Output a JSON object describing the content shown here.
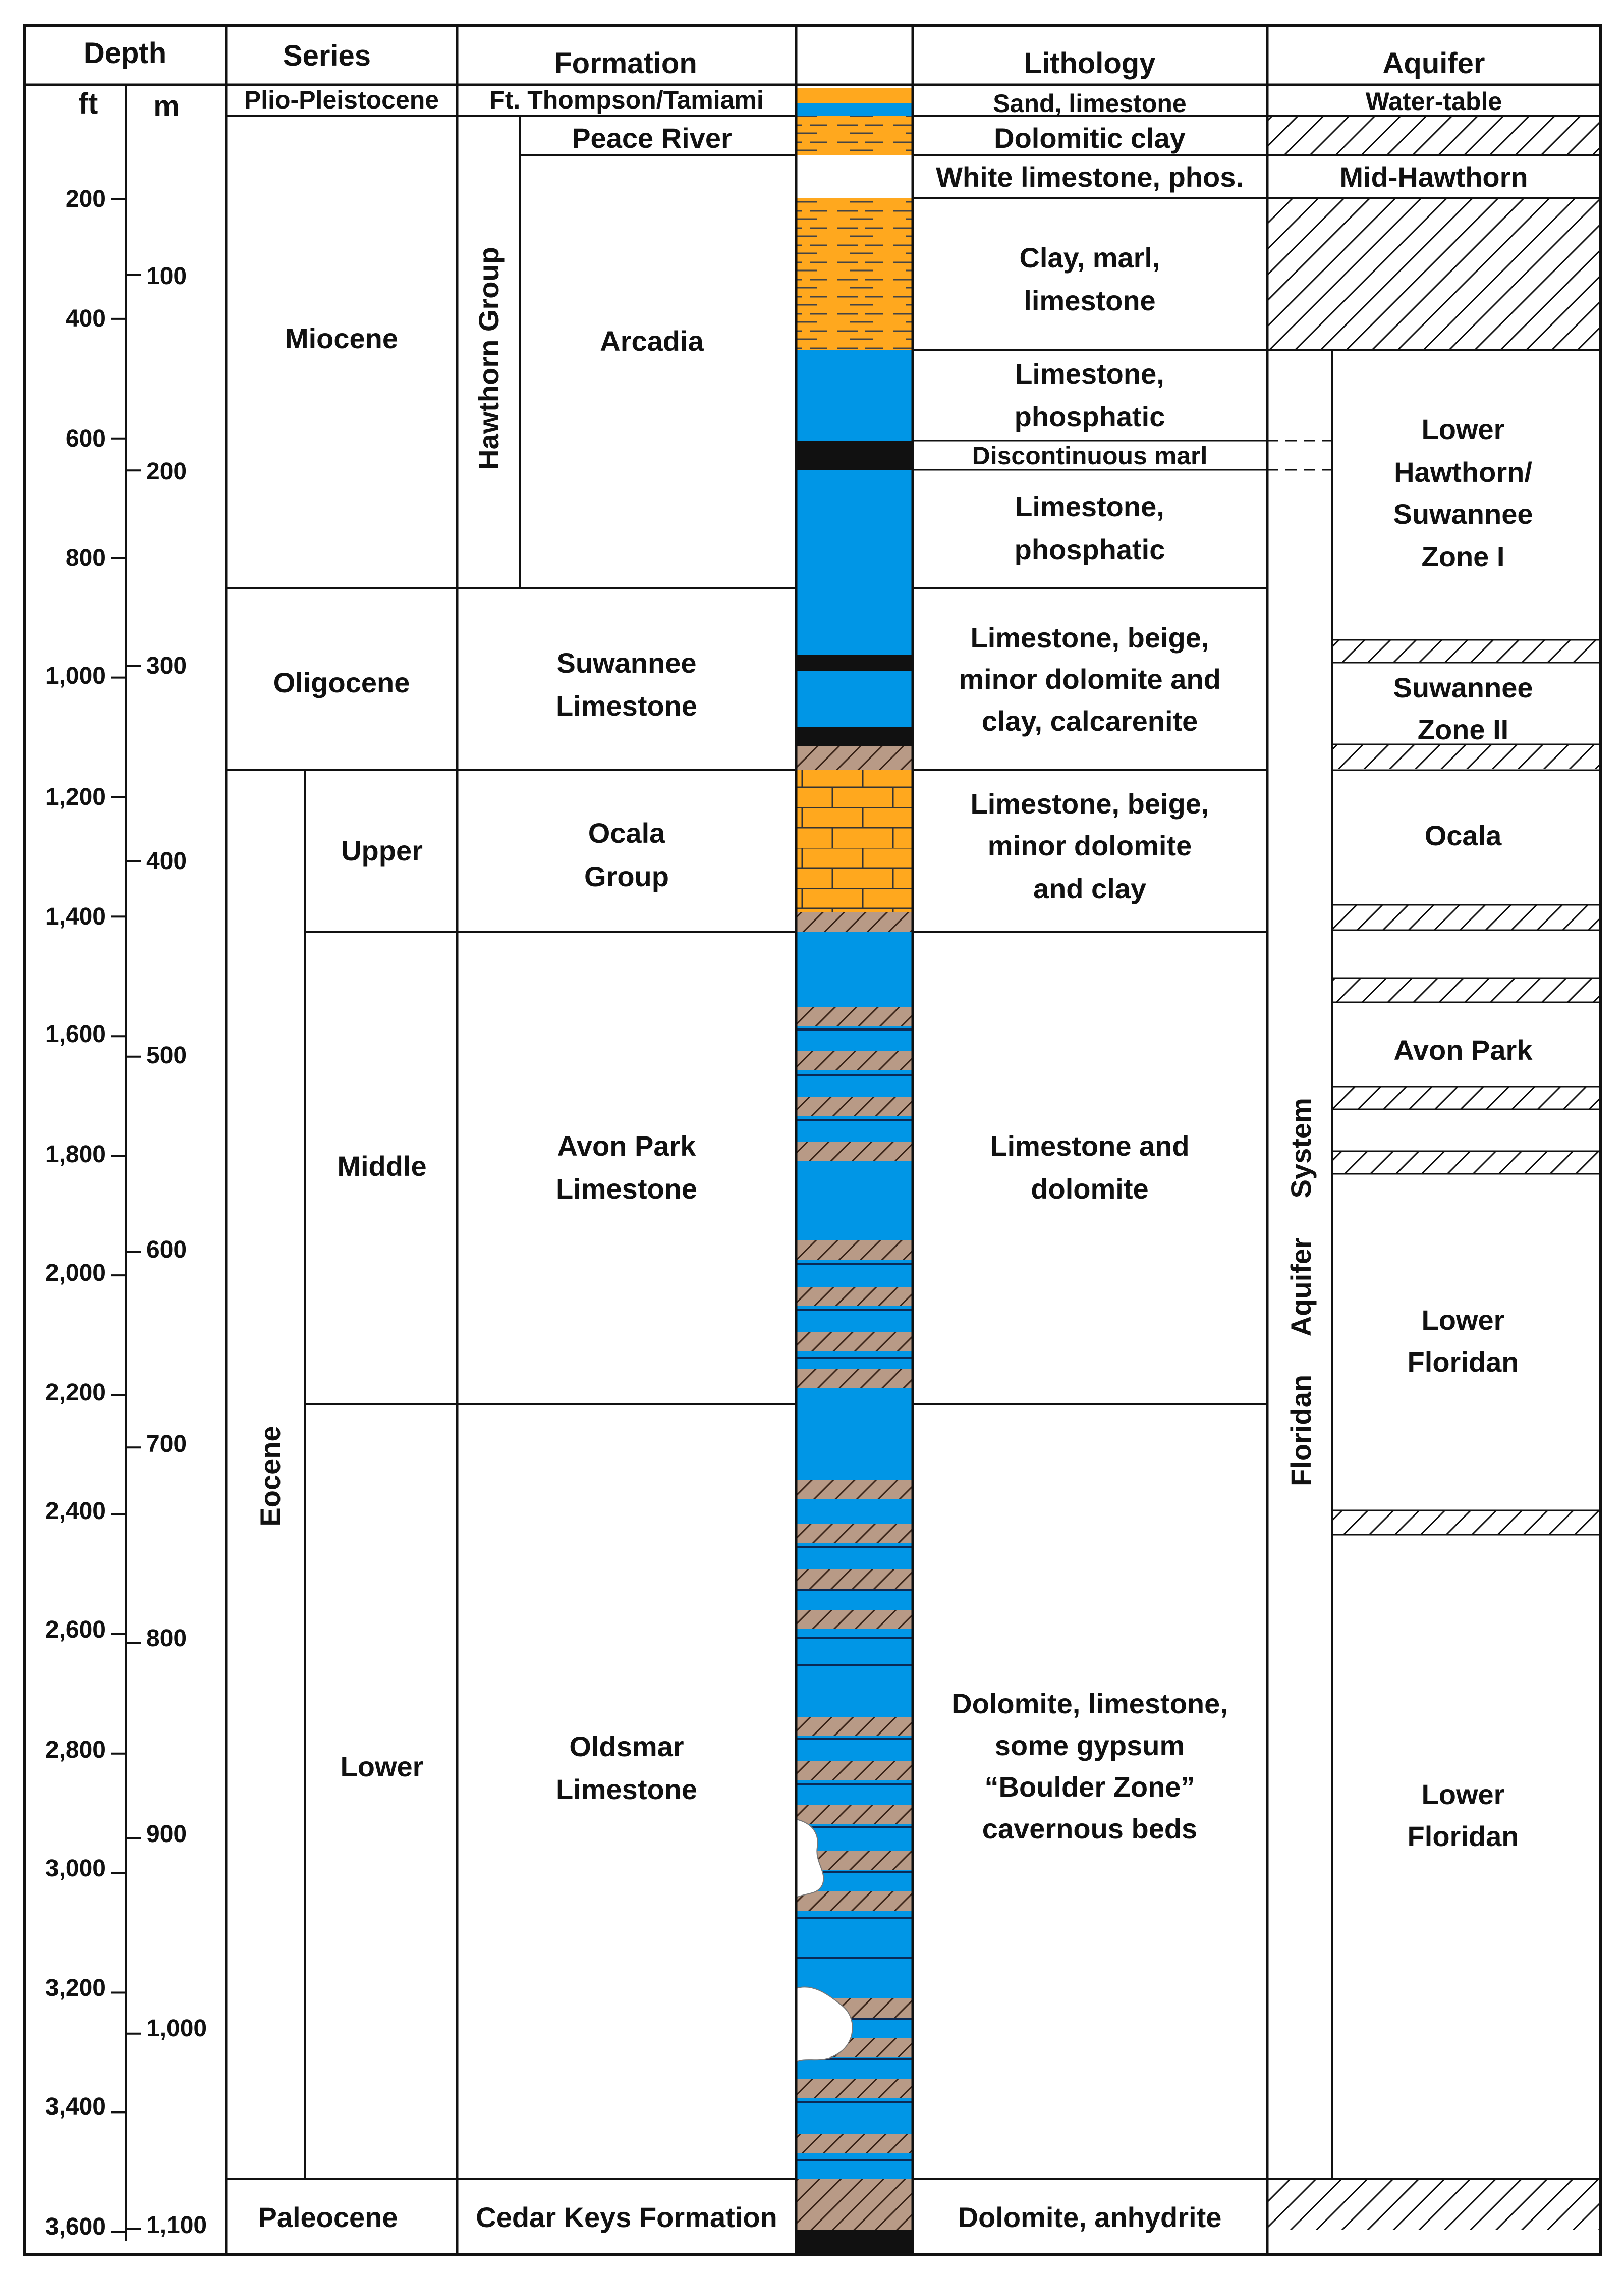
{
  "headers": {
    "depth": "Depth",
    "ft": "ft",
    "m": "m",
    "series": "Series",
    "formation": "Formation",
    "lithology": "Lithology",
    "aquifer": "Aquifer"
  },
  "depth_ft_ticks": [
    "200",
    "400",
    "600",
    "800",
    "1,000",
    "1,200",
    "1,400",
    "1,600",
    "1,800",
    "2,000",
    "2,200",
    "2,400",
    "2,600",
    "2,800",
    "3,000",
    "3,200",
    "3,400",
    "3,600"
  ],
  "depth_m_ticks": [
    "100",
    "200",
    "300",
    "400",
    "500",
    "600",
    "700",
    "800",
    "900",
    "1,000",
    "1,100"
  ],
  "series": {
    "plio": "Plio-Pleistocene",
    "miocene": "Miocene",
    "oligocene": "Oligocene",
    "eocene": "Eocene",
    "upper": "Upper",
    "middle": "Middle",
    "lower": "Lower",
    "paleocene": "Paleocene"
  },
  "formation": {
    "thompson": "Ft. Thompson/Tamiami",
    "peace_river": "Peace River",
    "hawthorn_group": "Hawthorn Group",
    "arcadia": "Arcadia",
    "suwannee_1": "Suwannee",
    "suwannee_2": "Limestone",
    "ocala_1": "Ocala",
    "ocala_2": "Group",
    "avon_1": "Avon Park",
    "avon_2": "Limestone",
    "oldsmar_1": "Oldsmar",
    "oldsmar_2": "Limestone",
    "cedar_keys": "Cedar Keys Formation"
  },
  "lithology": {
    "sand": "Sand, limestone",
    "dolomitic_clay": "Dolomitic clay",
    "white_limestone": "White limestone, phos.",
    "clay_1": "Clay, marl,",
    "clay_2": "limestone",
    "lp1_1": "Limestone,",
    "lp1_2": "phosphatic",
    "disc_marl": "Discontinuous marl",
    "lp2_1": "Limestone,",
    "lp2_2": "phosphatic",
    "suw_1": "Limestone, beige,",
    "suw_2": "minor dolomite and",
    "suw_3": "clay, calcarenite",
    "oca_1": "Limestone, beige,",
    "oca_2": "minor dolomite",
    "oca_3": "and clay",
    "avon_1": "Limestone and",
    "avon_2": "dolomite",
    "old_1": "Dolomite, limestone,",
    "old_2": "some gypsum",
    "old_3": "“Boulder Zone”",
    "old_4": "cavernous beds",
    "cedar": "Dolomite, anhydrite"
  },
  "aquifer": {
    "water_table": "Water-table",
    "mid_hawthorn": "Mid-Hawthorn",
    "floridan_system": "Floridan     Aquifer     System",
    "lh_1": "Lower",
    "lh_2": "Hawthorn/",
    "lh_3": "Suwannee",
    "lh_4": "Zone I",
    "sz_1": "Suwannee",
    "sz_2": "Zone II",
    "ocala": "Ocala",
    "avon_park": "Avon Park",
    "lf1_1": "Lower",
    "lf1_2": "Floridan",
    "lf2_1": "Lower",
    "lf2_2": "Floridan"
  },
  "colors": {
    "blue": "#0096e6",
    "orange": "#ffa81e",
    "hatch_tan": "#b89a86",
    "black": "#111111",
    "white": "#ffffff"
  }
}
